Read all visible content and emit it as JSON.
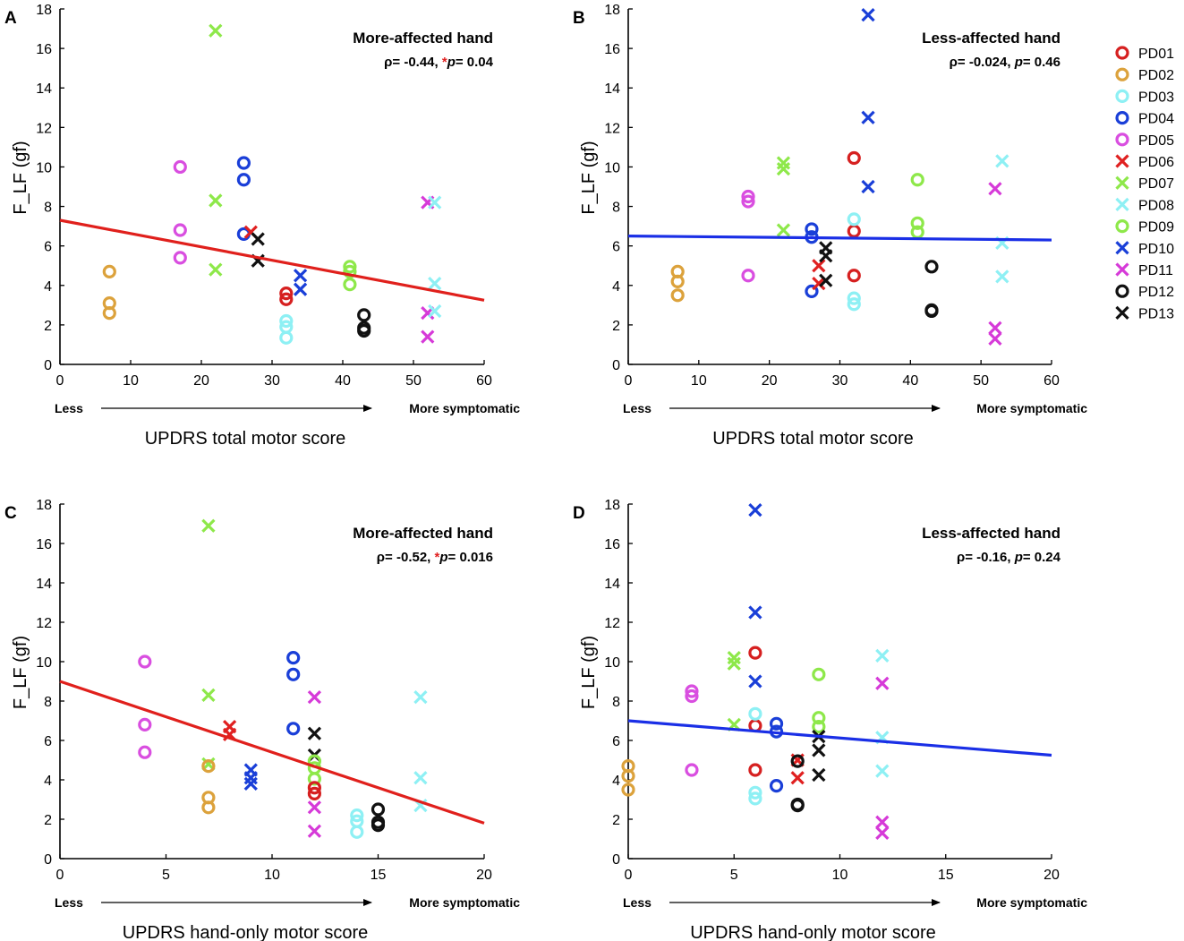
{
  "colors": {
    "PD01": "#d62020",
    "PD02": "#dca23c",
    "PD03": "#8ef0f4",
    "PD04": "#1a3fd8",
    "PD05": "#d94ee0",
    "PD06": "#e02020",
    "PD07": "#8ee84a",
    "PD08": "#8ef0f4",
    "PD09": "#8ee84a",
    "PD10": "#1a3fd8",
    "PD11": "#d63ad8",
    "PD12": "#111111",
    "PD13": "#111111",
    "fit_red": "#e0201c",
    "fit_blue": "#1a2fe6",
    "asterisk": "#e02020"
  },
  "legend": [
    {
      "label": "PD01",
      "marker": "o"
    },
    {
      "label": "PD02",
      "marker": "o"
    },
    {
      "label": "PD03",
      "marker": "o"
    },
    {
      "label": "PD04",
      "marker": "o"
    },
    {
      "label": "PD05",
      "marker": "o"
    },
    {
      "label": "PD06",
      "marker": "x"
    },
    {
      "label": "PD07",
      "marker": "x"
    },
    {
      "label": "PD08",
      "marker": "x"
    },
    {
      "label": "PD09",
      "marker": "o"
    },
    {
      "label": "PD10",
      "marker": "x"
    },
    {
      "label": "PD11",
      "marker": "x"
    },
    {
      "label": "PD12",
      "marker": "o"
    },
    {
      "label": "PD13",
      "marker": "x"
    }
  ],
  "chart_data": [
    {
      "panel": "A",
      "type": "scatter",
      "title": "More-affected hand",
      "stat": {
        "rho": "ρ= -0.44, ",
        "asterisk": "*",
        "p_italic": "p",
        "p_value": "= 0.04"
      },
      "xlabel": "UPDRS total motor score",
      "ylabel": "F_LF (gf)",
      "xlim": [
        0,
        60
      ],
      "ylim": [
        0,
        18
      ],
      "xticks": [
        0,
        10,
        20,
        30,
        40,
        50,
        60
      ],
      "yticks": [
        0,
        2,
        4,
        6,
        8,
        10,
        12,
        14,
        16,
        18
      ],
      "direction": {
        "left": "Less",
        "right": "More symptomatic"
      },
      "fit": {
        "x": [
          0,
          60
        ],
        "y": [
          7.3,
          3.25
        ],
        "color": "fit_red"
      },
      "points": [
        {
          "s": "PD02",
          "x": 7,
          "y": 4.7
        },
        {
          "s": "PD02",
          "x": 7,
          "y": 3.1
        },
        {
          "s": "PD02",
          "x": 7,
          "y": 2.6
        },
        {
          "s": "PD05",
          "x": 17,
          "y": 10.0
        },
        {
          "s": "PD05",
          "x": 17,
          "y": 6.8
        },
        {
          "s": "PD05",
          "x": 17,
          "y": 5.4
        },
        {
          "s": "PD07",
          "x": 22,
          "y": 16.9
        },
        {
          "s": "PD07",
          "x": 22,
          "y": 8.3
        },
        {
          "s": "PD07",
          "x": 22,
          "y": 4.8
        },
        {
          "s": "PD04",
          "x": 26,
          "y": 10.2
        },
        {
          "s": "PD04",
          "x": 26,
          "y": 9.35
        },
        {
          "s": "PD04",
          "x": 26,
          "y": 6.6
        },
        {
          "s": "PD06",
          "x": 27,
          "y": 6.7
        },
        {
          "s": "PD13",
          "x": 28,
          "y": 6.35
        },
        {
          "s": "PD13",
          "x": 28,
          "y": 5.25
        },
        {
          "s": "PD01",
          "x": 32,
          "y": 3.6
        },
        {
          "s": "PD01",
          "x": 32,
          "y": 3.3
        },
        {
          "s": "PD03",
          "x": 32,
          "y": 2.2
        },
        {
          "s": "PD03",
          "x": 32,
          "y": 1.9
        },
        {
          "s": "PD03",
          "x": 32,
          "y": 1.35
        },
        {
          "s": "PD10",
          "x": 34,
          "y": 4.5
        },
        {
          "s": "PD10",
          "x": 34,
          "y": 3.8
        },
        {
          "s": "PD09",
          "x": 41,
          "y": 4.95
        },
        {
          "s": "PD09",
          "x": 41,
          "y": 4.7
        },
        {
          "s": "PD09",
          "x": 41,
          "y": 4.05
        },
        {
          "s": "PD12",
          "x": 43,
          "y": 2.5
        },
        {
          "s": "PD12",
          "x": 43,
          "y": 1.85
        },
        {
          "s": "PD12",
          "x": 43,
          "y": 1.7
        },
        {
          "s": "PD11",
          "x": 52,
          "y": 8.2
        },
        {
          "s": "PD11",
          "x": 52,
          "y": 2.6
        },
        {
          "s": "PD11",
          "x": 52,
          "y": 1.4
        },
        {
          "s": "PD08",
          "x": 53,
          "y": 8.2
        },
        {
          "s": "PD08",
          "x": 53,
          "y": 4.1
        },
        {
          "s": "PD08",
          "x": 53,
          "y": 2.7
        }
      ]
    },
    {
      "panel": "B",
      "type": "scatter",
      "title": "Less-affected hand",
      "stat": {
        "rho": "ρ= -0.024, ",
        "asterisk": "",
        "p_italic": "p",
        "p_value": "= 0.46"
      },
      "xlabel": "UPDRS total motor score",
      "ylabel": "F_LF (gf)",
      "xlim": [
        0,
        60
      ],
      "ylim": [
        0,
        18
      ],
      "xticks": [
        0,
        10,
        20,
        30,
        40,
        50,
        60
      ],
      "yticks": [
        0,
        2,
        4,
        6,
        8,
        10,
        12,
        14,
        16,
        18
      ],
      "direction": {
        "left": "Less",
        "right": "More symptomatic"
      },
      "fit": {
        "x": [
          0,
          60
        ],
        "y": [
          6.5,
          6.3
        ],
        "color": "fit_blue"
      },
      "points": [
        {
          "s": "PD02",
          "x": 7,
          "y": 4.7
        },
        {
          "s": "PD02",
          "x": 7,
          "y": 4.2
        },
        {
          "s": "PD02",
          "x": 7,
          "y": 3.5
        },
        {
          "s": "PD05",
          "x": 17,
          "y": 8.5
        },
        {
          "s": "PD05",
          "x": 17,
          "y": 8.25
        },
        {
          "s": "PD05",
          "x": 17,
          "y": 4.5
        },
        {
          "s": "PD07",
          "x": 22,
          "y": 10.2
        },
        {
          "s": "PD07",
          "x": 22,
          "y": 9.9
        },
        {
          "s": "PD07",
          "x": 22,
          "y": 6.8
        },
        {
          "s": "PD04",
          "x": 26,
          "y": 6.85
        },
        {
          "s": "PD04",
          "x": 26,
          "y": 6.45
        },
        {
          "s": "PD04",
          "x": 26,
          "y": 3.7
        },
        {
          "s": "PD06",
          "x": 27,
          "y": 5.0
        },
        {
          "s": "PD06",
          "x": 27,
          "y": 4.1
        },
        {
          "s": "PD13",
          "x": 28,
          "y": 5.9
        },
        {
          "s": "PD13",
          "x": 28,
          "y": 5.5
        },
        {
          "s": "PD13",
          "x": 28,
          "y": 4.25
        },
        {
          "s": "PD01",
          "x": 32,
          "y": 10.45
        },
        {
          "s": "PD01",
          "x": 32,
          "y": 6.75
        },
        {
          "s": "PD01",
          "x": 32,
          "y": 4.5
        },
        {
          "s": "PD03",
          "x": 32,
          "y": 7.35
        },
        {
          "s": "PD03",
          "x": 32,
          "y": 3.35
        },
        {
          "s": "PD03",
          "x": 32,
          "y": 3.05
        },
        {
          "s": "PD10",
          "x": 34,
          "y": 17.7
        },
        {
          "s": "PD10",
          "x": 34,
          "y": 12.5
        },
        {
          "s": "PD10",
          "x": 34,
          "y": 9.0
        },
        {
          "s": "PD09",
          "x": 41,
          "y": 9.35
        },
        {
          "s": "PD09",
          "x": 41,
          "y": 7.15
        },
        {
          "s": "PD09",
          "x": 41,
          "y": 6.7
        },
        {
          "s": "PD12",
          "x": 43,
          "y": 4.95
        },
        {
          "s": "PD12",
          "x": 43,
          "y": 2.75
        },
        {
          "s": "PD12",
          "x": 43,
          "y": 2.7
        },
        {
          "s": "PD11",
          "x": 52,
          "y": 8.9
        },
        {
          "s": "PD11",
          "x": 52,
          "y": 1.85
        },
        {
          "s": "PD11",
          "x": 52,
          "y": 1.3
        },
        {
          "s": "PD08",
          "x": 53,
          "y": 10.3
        },
        {
          "s": "PD08",
          "x": 53,
          "y": 6.15
        },
        {
          "s": "PD08",
          "x": 53,
          "y": 4.45
        }
      ]
    },
    {
      "panel": "C",
      "type": "scatter",
      "title": "More-affected hand",
      "stat": {
        "rho": "ρ= -0.52, ",
        "asterisk": "*",
        "p_italic": "p",
        "p_value": "= 0.016"
      },
      "xlabel": "UPDRS hand-only motor score",
      "ylabel": "F_LF (gf)",
      "xlim": [
        0,
        20
      ],
      "ylim": [
        0,
        18
      ],
      "xticks": [
        0,
        5,
        10,
        15,
        20
      ],
      "yticks": [
        0,
        2,
        4,
        6,
        8,
        10,
        12,
        14,
        16,
        18
      ],
      "direction": {
        "left": "Less",
        "right": "More symptomatic"
      },
      "fit": {
        "x": [
          0,
          20
        ],
        "y": [
          9.0,
          1.8
        ],
        "color": "fit_red"
      },
      "points": [
        {
          "s": "PD05",
          "x": 4,
          "y": 10.0
        },
        {
          "s": "PD05",
          "x": 4,
          "y": 6.8
        },
        {
          "s": "PD05",
          "x": 4,
          "y": 5.4
        },
        {
          "s": "PD07",
          "x": 7,
          "y": 16.9
        },
        {
          "s": "PD07",
          "x": 7,
          "y": 8.3
        },
        {
          "s": "PD07",
          "x": 7,
          "y": 4.8
        },
        {
          "s": "PD02",
          "x": 7,
          "y": 4.7
        },
        {
          "s": "PD02",
          "x": 7,
          "y": 3.1
        },
        {
          "s": "PD02",
          "x": 7,
          "y": 2.6
        },
        {
          "s": "PD06",
          "x": 8,
          "y": 6.7
        },
        {
          "s": "PD06",
          "x": 8,
          "y": 6.3
        },
        {
          "s": "PD10",
          "x": 9,
          "y": 4.5
        },
        {
          "s": "PD10",
          "x": 9,
          "y": 4.1
        },
        {
          "s": "PD10",
          "x": 9,
          "y": 3.8
        },
        {
          "s": "PD04",
          "x": 11,
          "y": 10.2
        },
        {
          "s": "PD04",
          "x": 11,
          "y": 9.35
        },
        {
          "s": "PD04",
          "x": 11,
          "y": 6.6
        },
        {
          "s": "PD11",
          "x": 12,
          "y": 8.2
        },
        {
          "s": "PD11",
          "x": 12,
          "y": 2.6
        },
        {
          "s": "PD11",
          "x": 12,
          "y": 1.4
        },
        {
          "s": "PD13",
          "x": 12,
          "y": 6.35
        },
        {
          "s": "PD13",
          "x": 12,
          "y": 5.25
        },
        {
          "s": "PD09",
          "x": 12,
          "y": 4.95
        },
        {
          "s": "PD09",
          "x": 12,
          "y": 4.6
        },
        {
          "s": "PD09",
          "x": 12,
          "y": 4.05
        },
        {
          "s": "PD01",
          "x": 12,
          "y": 3.6
        },
        {
          "s": "PD01",
          "x": 12,
          "y": 3.3
        },
        {
          "s": "PD03",
          "x": 14,
          "y": 2.2
        },
        {
          "s": "PD03",
          "x": 14,
          "y": 1.9
        },
        {
          "s": "PD03",
          "x": 14,
          "y": 1.35
        },
        {
          "s": "PD12",
          "x": 15,
          "y": 2.5
        },
        {
          "s": "PD12",
          "x": 15,
          "y": 1.85
        },
        {
          "s": "PD12",
          "x": 15,
          "y": 1.7
        },
        {
          "s": "PD08",
          "x": 17,
          "y": 8.2
        },
        {
          "s": "PD08",
          "x": 17,
          "y": 4.1
        },
        {
          "s": "PD08",
          "x": 17,
          "y": 2.7
        }
      ]
    },
    {
      "panel": "D",
      "type": "scatter",
      "title": "Less-affected hand",
      "stat": {
        "rho": "ρ= -0.16, ",
        "asterisk": "",
        "p_italic": "p",
        "p_value": "= 0.24"
      },
      "xlabel": "UPDRS hand-only motor score",
      "ylabel": "F_LF (gf)",
      "xlim": [
        0,
        20
      ],
      "ylim": [
        0,
        18
      ],
      "xticks": [
        0,
        5,
        10,
        15,
        20
      ],
      "yticks": [
        0,
        2,
        4,
        6,
        8,
        10,
        12,
        14,
        16,
        18
      ],
      "direction": {
        "left": "Less",
        "right": "More symptomatic"
      },
      "fit": {
        "x": [
          0,
          20
        ],
        "y": [
          7.0,
          5.25
        ],
        "color": "fit_blue"
      },
      "points": [
        {
          "s": "PD02",
          "x": 0,
          "y": 4.7
        },
        {
          "s": "PD02",
          "x": 0,
          "y": 4.2
        },
        {
          "s": "PD02",
          "x": 0,
          "y": 3.5
        },
        {
          "s": "PD05",
          "x": 3,
          "y": 8.5
        },
        {
          "s": "PD05",
          "x": 3,
          "y": 8.25
        },
        {
          "s": "PD05",
          "x": 3,
          "y": 4.5
        },
        {
          "s": "PD07",
          "x": 5,
          "y": 10.2
        },
        {
          "s": "PD07",
          "x": 5,
          "y": 9.9
        },
        {
          "s": "PD07",
          "x": 5,
          "y": 6.8
        },
        {
          "s": "PD10",
          "x": 6,
          "y": 17.7
        },
        {
          "s": "PD10",
          "x": 6,
          "y": 12.5
        },
        {
          "s": "PD10",
          "x": 6,
          "y": 9.0
        },
        {
          "s": "PD01",
          "x": 6,
          "y": 10.45
        },
        {
          "s": "PD01",
          "x": 6,
          "y": 6.75
        },
        {
          "s": "PD01",
          "x": 6,
          "y": 4.5
        },
        {
          "s": "PD03",
          "x": 6,
          "y": 7.35
        },
        {
          "s": "PD03",
          "x": 6,
          "y": 3.35
        },
        {
          "s": "PD03",
          "x": 6,
          "y": 3.05
        },
        {
          "s": "PD04",
          "x": 7,
          "y": 6.85
        },
        {
          "s": "PD04",
          "x": 7,
          "y": 6.45
        },
        {
          "s": "PD04",
          "x": 7,
          "y": 3.7
        },
        {
          "s": "PD06",
          "x": 8,
          "y": 5.0
        },
        {
          "s": "PD06",
          "x": 8,
          "y": 4.1
        },
        {
          "s": "PD12",
          "x": 8,
          "y": 4.95
        },
        {
          "s": "PD12",
          "x": 8,
          "y": 2.75
        },
        {
          "s": "PD12",
          "x": 8,
          "y": 2.7
        },
        {
          "s": "PD09",
          "x": 9,
          "y": 9.35
        },
        {
          "s": "PD09",
          "x": 9,
          "y": 7.15
        },
        {
          "s": "PD09",
          "x": 9,
          "y": 6.7
        },
        {
          "s": "PD13",
          "x": 9,
          "y": 6.2
        },
        {
          "s": "PD13",
          "x": 9,
          "y": 5.5
        },
        {
          "s": "PD13",
          "x": 9,
          "y": 4.25
        },
        {
          "s": "PD11",
          "x": 12,
          "y": 8.9
        },
        {
          "s": "PD11",
          "x": 12,
          "y": 1.85
        },
        {
          "s": "PD11",
          "x": 12,
          "y": 1.3
        },
        {
          "s": "PD08",
          "x": 12,
          "y": 10.3
        },
        {
          "s": "PD08",
          "x": 12,
          "y": 6.15
        },
        {
          "s": "PD08",
          "x": 12,
          "y": 4.45
        }
      ]
    }
  ]
}
